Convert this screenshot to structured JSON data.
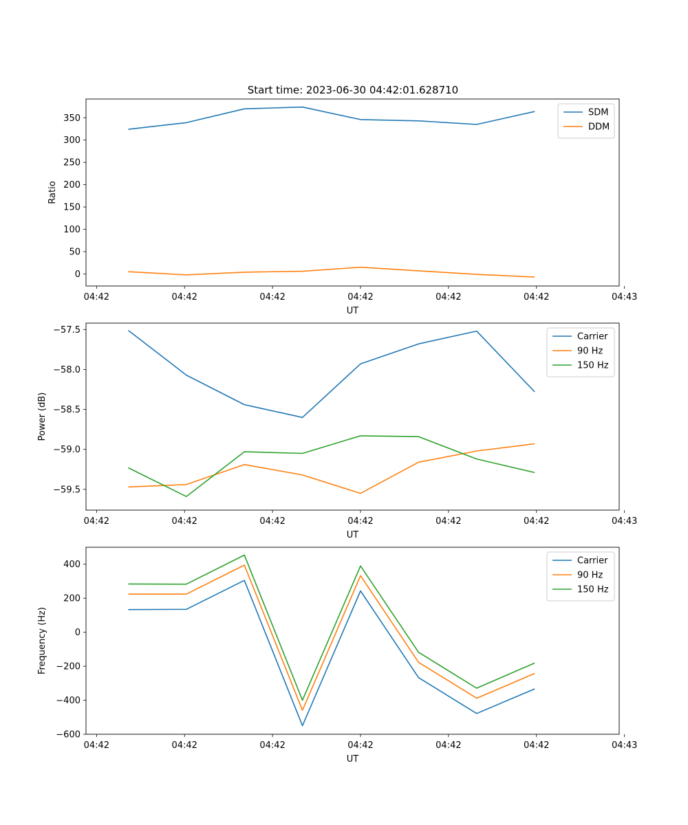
{
  "figure_title": "Start time: 2023-06-30 04:42:01.628710",
  "colors": {
    "blue": "#1f77b4",
    "orange": "#ff7f0e",
    "green": "#2ca02c"
  },
  "chart_data": [
    {
      "type": "line",
      "title": "Start time: 2023-06-30 04:42:01.628710",
      "xlabel": "UT",
      "ylabel": "Ratio",
      "x": [
        "04:42:01.628710",
        "04:42:01.958710",
        "04:42:02.288710",
        "04:42:02.618710",
        "04:42:02.948710",
        "04:42:03.278710",
        "04:42:03.608710",
        "04:42:03.938710"
      ],
      "xlim": [
        "04:42:01.388710",
        "04:42:04.418710"
      ],
      "x_ticks": [
        {
          "t": "04:42:01.448710",
          "label": "04:42"
        },
        {
          "t": "04:42:01.948710",
          "label": "04:42"
        },
        {
          "t": "04:42:02.448710",
          "label": "04:42"
        },
        {
          "t": "04:42:02.948710",
          "label": "04:42"
        },
        {
          "t": "04:42:03.448710",
          "label": "04:42"
        },
        {
          "t": "04:42:03.948710",
          "label": "04:42"
        },
        {
          "t": "04:42:04.448710",
          "label": "04:43"
        }
      ],
      "ylim": [
        -27,
        392
      ],
      "yticks": [
        0,
        50,
        100,
        150,
        200,
        250,
        300,
        350
      ],
      "grid": false,
      "legend": "upper right",
      "series": [
        {
          "name": "SDM",
          "color": "#1f77b4",
          "values": [
            324,
            339,
            370,
            374,
            346,
            343,
            335,
            364
          ]
        },
        {
          "name": "DDM",
          "color": "#ff7f0e",
          "values": [
            5,
            -2,
            4,
            6,
            15,
            7,
            -1,
            -7
          ]
        }
      ]
    },
    {
      "type": "line",
      "title": "",
      "xlabel": "UT",
      "ylabel": "Power (dB)",
      "x": [
        "04:42:01.628710",
        "04:42:01.958710",
        "04:42:02.288710",
        "04:42:02.618710",
        "04:42:02.948710",
        "04:42:03.278710",
        "04:42:03.608710",
        "04:42:03.938710"
      ],
      "xlim": [
        "04:42:01.388710",
        "04:42:04.418710"
      ],
      "x_ticks": [
        {
          "t": "04:42:01.448710",
          "label": "04:42"
        },
        {
          "t": "04:42:01.948710",
          "label": "04:42"
        },
        {
          "t": "04:42:02.448710",
          "label": "04:42"
        },
        {
          "t": "04:42:02.948710",
          "label": "04:42"
        },
        {
          "t": "04:42:03.448710",
          "label": "04:42"
        },
        {
          "t": "04:42:03.948710",
          "label": "04:42"
        },
        {
          "t": "04:42:04.448710",
          "label": "04:43"
        }
      ],
      "ylim": [
        -59.76,
        -57.42
      ],
      "yticks": [
        -59.5,
        -59.0,
        -58.5,
        -58.0,
        -57.5
      ],
      "ytick_labels": [
        "−59.5",
        "−59.0",
        "−58.5",
        "−58.0",
        "−57.5"
      ],
      "grid": false,
      "legend": "upper right",
      "series": [
        {
          "name": "Carrier",
          "color": "#1f77b4",
          "values": [
            -57.51,
            -58.07,
            -58.44,
            -58.6,
            -57.93,
            -57.68,
            -57.52,
            -58.28
          ]
        },
        {
          "name": "90 Hz",
          "color": "#ff7f0e",
          "values": [
            -59.47,
            -59.44,
            -59.19,
            -59.32,
            -59.55,
            -59.16,
            -59.02,
            -58.93
          ]
        },
        {
          "name": "150 Hz",
          "color": "#2ca02c",
          "values": [
            -59.23,
            -59.59,
            -59.03,
            -59.05,
            -58.83,
            -58.84,
            -59.12,
            -59.29
          ]
        }
      ]
    },
    {
      "type": "line",
      "title": "",
      "xlabel": "UT",
      "ylabel": "Frequency (Hz)",
      "x": [
        "04:42:01.628710",
        "04:42:01.958710",
        "04:42:02.288710",
        "04:42:02.618710",
        "04:42:02.948710",
        "04:42:03.278710",
        "04:42:03.608710",
        "04:42:03.938710"
      ],
      "xlim": [
        "04:42:01.388710",
        "04:42:04.418710"
      ],
      "x_ticks": [
        {
          "t": "04:42:01.448710",
          "label": "04:42"
        },
        {
          "t": "04:42:01.948710",
          "label": "04:42"
        },
        {
          "t": "04:42:02.448710",
          "label": "04:42"
        },
        {
          "t": "04:42:02.948710",
          "label": "04:42"
        },
        {
          "t": "04:42:03.448710",
          "label": "04:42"
        },
        {
          "t": "04:42:03.948710",
          "label": "04:42"
        },
        {
          "t": "04:42:04.448710",
          "label": "04:43"
        }
      ],
      "ylim": [
        -600,
        500
      ],
      "yticks": [
        -600,
        -400,
        -200,
        0,
        200,
        400
      ],
      "ytick_labels": [
        "−600",
        "−400",
        "−200",
        "0",
        "200",
        "400"
      ],
      "grid": false,
      "legend": "upper right",
      "series": [
        {
          "name": "Carrier",
          "color": "#1f77b4",
          "values": [
            133,
            135,
            305,
            -550,
            243,
            -267,
            -478,
            -333
          ]
        },
        {
          "name": "90 Hz",
          "color": "#ff7f0e",
          "values": [
            224,
            224,
            395,
            -459,
            333,
            -177,
            -388,
            -242
          ]
        },
        {
          "name": "150 Hz",
          "color": "#2ca02c",
          "values": [
            284,
            283,
            454,
            -400,
            390,
            -118,
            -329,
            -181
          ]
        }
      ]
    }
  ]
}
